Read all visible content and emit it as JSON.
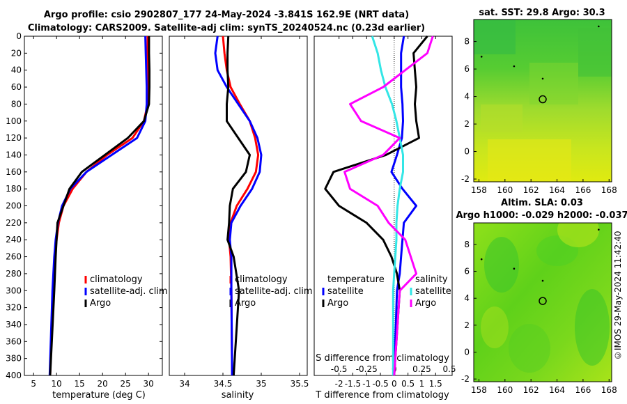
{
  "header": {
    "title_line1": "Argo profile: csio 2902807_177 24-May-2024 -3.841S 162.9E (NRT data)",
    "title_line2": "Climatology: CARS2009. Satellite-adj clim: synTS_20240524.nc (0.23d earlier)"
  },
  "side_label": "©IMOS 29-May-2024 11:42:40",
  "colors": {
    "climatology": "#ff0000",
    "satellite": "#0000ff",
    "argo": "#000000",
    "sat_salinity": "#33e6e6",
    "argo_salinity": "#ff00ff"
  },
  "chart_data": [
    {
      "type": "line",
      "id": "temperature",
      "xlabel": "temperature (deg C)",
      "ylabel": "",
      "xlim": [
        3,
        33
      ],
      "ylim": [
        400,
        0
      ],
      "xticks": [
        5,
        10,
        15,
        20,
        25,
        30
      ],
      "yticks": [
        0,
        20,
        40,
        60,
        80,
        100,
        120,
        140,
        160,
        180,
        200,
        220,
        240,
        260,
        280,
        300,
        320,
        340,
        360,
        380,
        400
      ],
      "legend": [
        "climatology",
        "satellite-adj. clim",
        "Argo"
      ],
      "series": [
        {
          "name": "climatology",
          "color": "#ff0000",
          "x": [
            29.8,
            29.8,
            29.9,
            29.9,
            29.8,
            29.0,
            26.5,
            21.0,
            16.5,
            13.5,
            11.5,
            10.5,
            10.0,
            9.6,
            9.2,
            8.6
          ],
          "y": [
            0,
            20,
            40,
            60,
            80,
            100,
            120,
            140,
            160,
            180,
            200,
            220,
            240,
            260,
            300,
            400
          ]
        },
        {
          "name": "satellite-adj. clim",
          "color": "#0000ff",
          "x": [
            29.3,
            29.4,
            29.5,
            29.6,
            29.6,
            29.3,
            27.5,
            22.0,
            16.5,
            13.0,
            11.2,
            10.3,
            9.8,
            9.5,
            9.1,
            8.5
          ],
          "y": [
            0,
            20,
            40,
            60,
            80,
            100,
            120,
            140,
            160,
            180,
            200,
            220,
            240,
            260,
            300,
            400
          ]
        },
        {
          "name": "Argo",
          "color": "#000000",
          "x": [
            30.1,
            30.1,
            30.2,
            30.2,
            30.1,
            29.0,
            25.5,
            20.5,
            15.5,
            12.8,
            11.5,
            10.2,
            10.0,
            9.8,
            9.5,
            8.6
          ],
          "y": [
            0,
            20,
            40,
            60,
            80,
            100,
            120,
            140,
            160,
            180,
            200,
            220,
            240,
            260,
            300,
            400
          ]
        }
      ]
    },
    {
      "type": "line",
      "id": "salinity",
      "xlabel": "salinity",
      "xlim": [
        33.8,
        35.6
      ],
      "ylim": [
        400,
        0
      ],
      "xticks": [
        34,
        34.5,
        35,
        35.5
      ],
      "legend": [
        "climatology",
        "satellite-adj. clim",
        "Argo"
      ],
      "series": [
        {
          "name": "climatology",
          "color": "#ff0000",
          "x": [
            34.5,
            34.52,
            34.55,
            34.6,
            34.72,
            34.85,
            34.92,
            34.96,
            34.93,
            34.82,
            34.68,
            34.6,
            34.58,
            34.6,
            34.61,
            34.62
          ],
          "y": [
            0,
            20,
            40,
            60,
            80,
            100,
            120,
            140,
            160,
            180,
            200,
            220,
            240,
            260,
            300,
            400
          ]
        },
        {
          "name": "satellite-adj. clim",
          "color": "#0000ff",
          "x": [
            34.43,
            34.4,
            34.43,
            34.55,
            34.7,
            34.85,
            34.95,
            35.0,
            34.98,
            34.88,
            34.73,
            34.61,
            34.59,
            34.61,
            34.61,
            34.62
          ],
          "y": [
            0,
            20,
            40,
            60,
            80,
            100,
            120,
            140,
            160,
            180,
            200,
            220,
            240,
            260,
            300,
            400
          ]
        },
        {
          "name": "Argo",
          "color": "#000000",
          "x": [
            34.57,
            34.56,
            34.56,
            34.57,
            34.55,
            34.55,
            34.7,
            34.85,
            34.8,
            34.63,
            34.59,
            34.58,
            34.56,
            34.64,
            34.71,
            34.64
          ],
          "y": [
            0,
            20,
            40,
            60,
            80,
            100,
            120,
            140,
            160,
            180,
            200,
            220,
            240,
            260,
            300,
            400
          ]
        }
      ]
    },
    {
      "type": "line",
      "id": "differences",
      "xlabel": "T difference from climatology",
      "xlabel_top": "S difference from climatology",
      "xlim": [
        -2.9,
        2.1
      ],
      "ylim": [
        400,
        0
      ],
      "xticks": [
        -2,
        -1.5,
        -1,
        -0.5,
        0,
        0.5,
        1,
        1.5
      ],
      "xtick_labels": [
        "-2",
        "-1.5",
        "-1",
        "-0.5",
        "0",
        "0.5",
        "1",
        "1.5"
      ],
      "s_ticks": [
        -0.5,
        -0.25,
        0,
        0.25,
        0.5
      ],
      "s_tick_labels": [
        "-0.5",
        "-0.25",
        "0",
        "0.25",
        "0.5"
      ],
      "legend_temperature_title": "temperature",
      "legend_salinity_title": "salinity",
      "legend_temperature": [
        "satellite",
        "Argo"
      ],
      "legend_salinity": [
        "satellite",
        "Argo"
      ],
      "series": [
        {
          "name": "temperature satellite",
          "color": "#0000ff",
          "x": [
            0.35,
            0.25,
            0.25,
            0.25,
            0.3,
            0.32,
            0.28,
            0.1,
            -0.1,
            0.3,
            0.8,
            0.35,
            0.3,
            0.25,
            0.2,
            0.1,
            0.0
          ],
          "y": [
            0,
            20,
            40,
            60,
            80,
            100,
            120,
            140,
            160,
            180,
            200,
            220,
            240,
            260,
            280,
            300,
            400
          ]
        },
        {
          "name": "temperature Argo",
          "color": "#000000",
          "x": [
            1.2,
            0.7,
            0.75,
            0.8,
            0.75,
            0.8,
            0.9,
            -0.3,
            -2.2,
            -2.5,
            -2.0,
            -1.0,
            -0.4,
            -0.1,
            0.1,
            0.2,
            0.0
          ],
          "y": [
            0,
            20,
            40,
            60,
            80,
            100,
            120,
            140,
            160,
            180,
            200,
            220,
            240,
            260,
            280,
            300,
            400
          ]
        },
        {
          "name": "salinity satellite",
          "color": "#33e6e6",
          "x": [
            -0.2,
            -0.15,
            -0.12,
            -0.08,
            -0.02,
            0.02,
            0.05,
            0.08,
            0.08,
            0.05,
            0.03,
            0.02,
            0.02,
            0.01,
            0.0,
            -0.01,
            -0.01
          ],
          "y": [
            0,
            20,
            40,
            60,
            80,
            100,
            120,
            140,
            160,
            180,
            200,
            220,
            240,
            260,
            280,
            300,
            400
          ]
        },
        {
          "name": "salinity Argo",
          "color": "#ff00ff",
          "x": [
            0.35,
            0.3,
            0.1,
            -0.1,
            -0.4,
            -0.3,
            0.05,
            -0.1,
            -0.45,
            -0.4,
            -0.15,
            -0.05,
            0.1,
            0.15,
            0.2,
            0.05,
            0.0
          ],
          "y": [
            0,
            20,
            40,
            60,
            80,
            100,
            120,
            140,
            160,
            180,
            200,
            220,
            240,
            260,
            280,
            300,
            400
          ]
        }
      ]
    },
    {
      "type": "heatmap",
      "id": "sst_map",
      "title": "sat. SST: 29.8 Argo: 30.3",
      "xlim": [
        157.6,
        168.2
      ],
      "ylim": [
        -2.2,
        9.6
      ],
      "xticks": [
        158,
        160,
        162,
        164,
        166,
        168
      ],
      "yticks": [
        -2,
        0,
        2,
        4,
        6,
        8
      ],
      "argo_position": {
        "lon": 162.9,
        "lat": 3.8
      }
    },
    {
      "type": "heatmap",
      "id": "sla_map",
      "title": "Altim. SLA: 0.03",
      "subtitle": "Argo h1000: -0.029 h2000: -0.037",
      "xlim": [
        157.6,
        168.2
      ],
      "ylim": [
        -2.2,
        9.6
      ],
      "xticks": [
        158,
        160,
        162,
        164,
        166,
        168
      ],
      "yticks": [
        -2,
        0,
        2,
        4,
        6,
        8
      ],
      "argo_position": {
        "lon": 162.9,
        "lat": 3.8
      }
    }
  ]
}
